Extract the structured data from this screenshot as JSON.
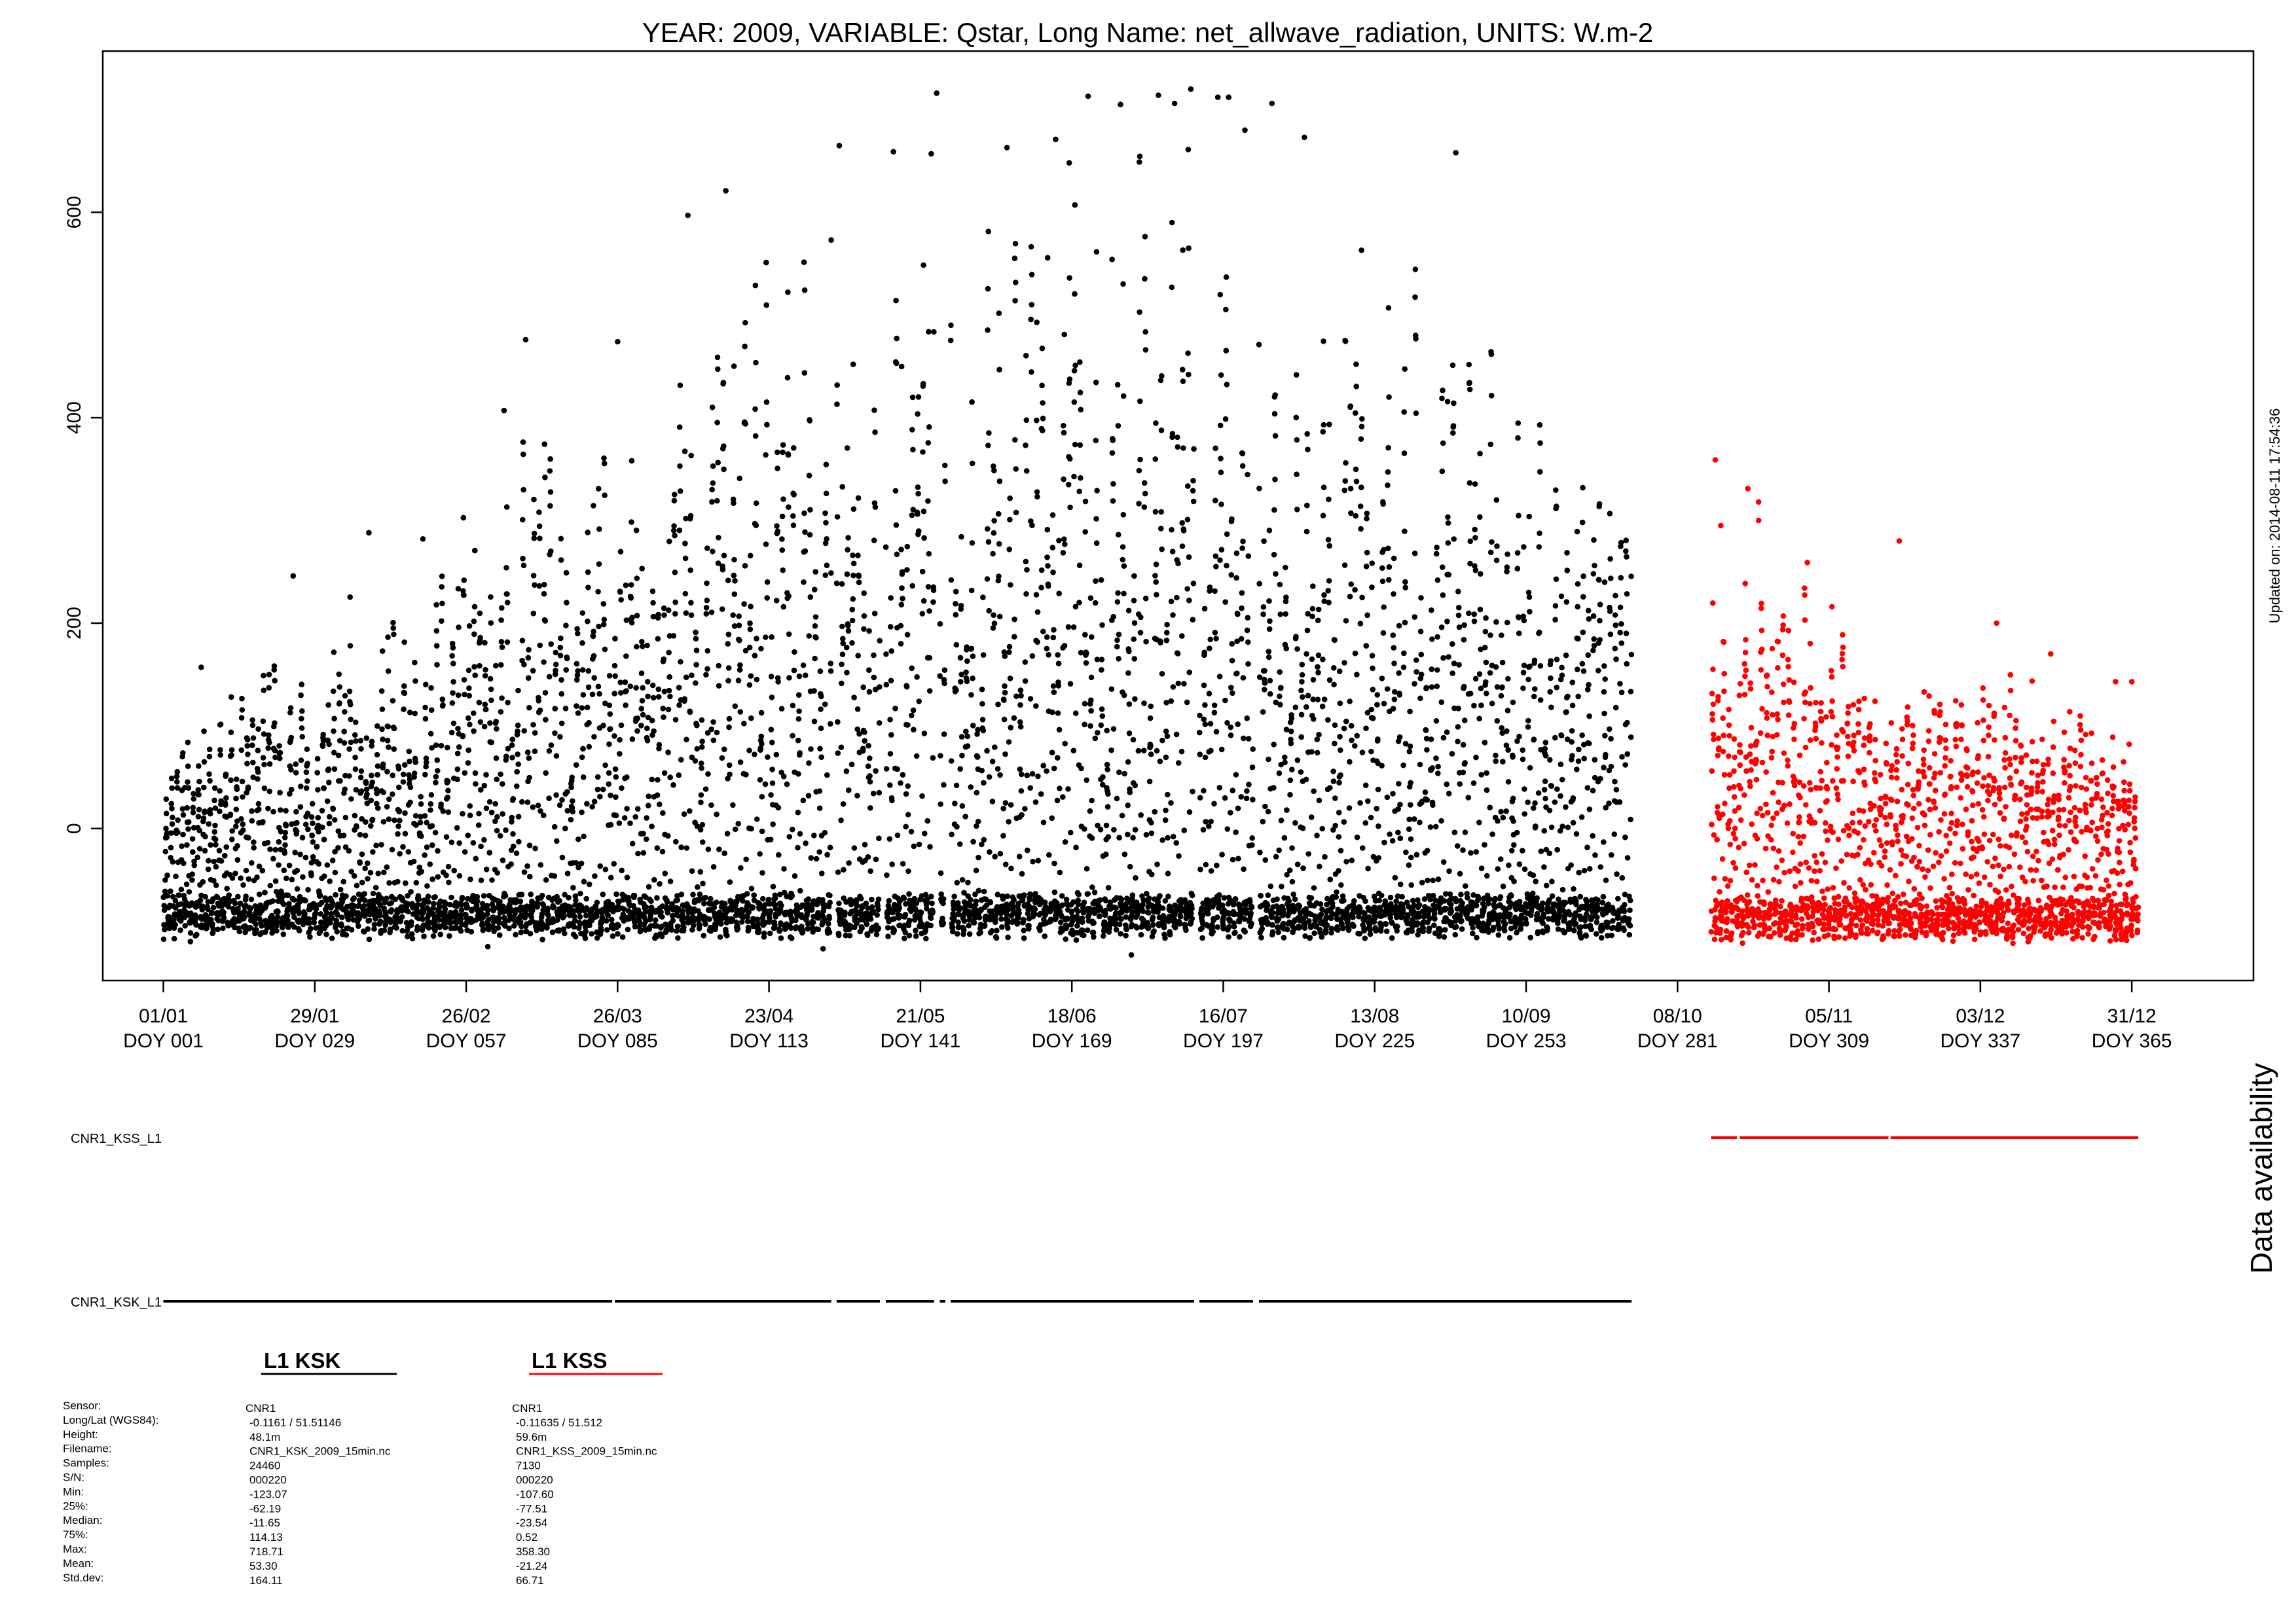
{
  "chart_data": {
    "type": "scatter",
    "title": "YEAR: 2009, VARIABLE: Qstar, Long Name: net_allwave_radiation, UNITS: W.m-2",
    "xlabel": "",
    "ylabel": "",
    "x_unit": "day of year",
    "xlim": [
      -10.2,
      387.5
    ],
    "ylim": [
      -148,
      757
    ],
    "yticks": [
      0,
      200,
      400,
      600
    ],
    "xticks": [
      {
        "doy": 1,
        "date": "01/01",
        "label": "DOY 001"
      },
      {
        "doy": 29,
        "date": "29/01",
        "label": "DOY 029"
      },
      {
        "doy": 57,
        "date": "26/02",
        "label": "DOY 057"
      },
      {
        "doy": 85,
        "date": "26/03",
        "label": "DOY 085"
      },
      {
        "doy": 113,
        "date": "23/04",
        "label": "DOY 113"
      },
      {
        "doy": 141,
        "date": "21/05",
        "label": "DOY 141"
      },
      {
        "doy": 169,
        "date": "18/06",
        "label": "DOY 169"
      },
      {
        "doy": 197,
        "date": "16/07",
        "label": "DOY 197"
      },
      {
        "doy": 225,
        "date": "13/08",
        "label": "DOY 225"
      },
      {
        "doy": 253,
        "date": "10/09",
        "label": "DOY 253"
      },
      {
        "doy": 281,
        "date": "08/10",
        "label": "DOY 281"
      },
      {
        "doy": 309,
        "date": "05/11",
        "label": "DOY 309"
      },
      {
        "doy": 337,
        "date": "03/12",
        "label": "DOY 337"
      },
      {
        "doy": 365,
        "date": "31/12",
        "label": "DOY 365"
      }
    ],
    "grid": false,
    "series": [
      {
        "id": "ksk",
        "color": "#000000",
        "doy_range": [
          1,
          272.5
        ],
        "gaps": [
          [
            124.5,
            125.5
          ],
          [
            133.5,
            134.6
          ],
          [
            143.5,
            144.6
          ],
          [
            145.6,
            146.6
          ],
          [
            191.6,
            192.6
          ],
          [
            202.5,
            203.6
          ]
        ],
        "daily_peak": [
          [
            1,
            70
          ],
          [
            15,
            125
          ],
          [
            30,
            215
          ],
          [
            45,
            255
          ],
          [
            57,
            300
          ],
          [
            70,
            400
          ],
          [
            85,
            420
          ],
          [
            98,
            520
          ],
          [
            113,
            580
          ],
          [
            127,
            630
          ],
          [
            141,
            650
          ],
          [
            155,
            660
          ],
          [
            169,
            670
          ],
          [
            183,
            680
          ],
          [
            197,
            660
          ],
          [
            211,
            620
          ],
          [
            225,
            570
          ],
          [
            239,
            530
          ],
          [
            253,
            480
          ],
          [
            265,
            440
          ],
          [
            272,
            400
          ]
        ],
        "night_base": -85,
        "points": [
          [
            124.5,
            573
          ],
          [
            126,
            665
          ],
          [
            136,
            659
          ],
          [
            143,
            657
          ],
          [
            144,
            716
          ],
          [
            157,
            663
          ],
          [
            166,
            671
          ],
          [
            172,
            713
          ],
          [
            178,
            705
          ],
          [
            185,
            714
          ],
          [
            188,
            706
          ],
          [
            191,
            720
          ],
          [
            196,
            712
          ],
          [
            198,
            712
          ],
          [
            201,
            680
          ],
          [
            206,
            706
          ],
          [
            212,
            673
          ],
          [
            240,
            658
          ],
          [
            98,
            597
          ],
          [
            105,
            621
          ],
          [
            85,
            474
          ],
          [
            64,
            407
          ],
          [
            68,
            476
          ],
          [
            49,
            282
          ],
          [
            39,
            288
          ],
          [
            25,
            246
          ],
          [
            8,
            157
          ],
          [
            5,
            40
          ],
          [
            180,
            -123
          ],
          [
            123,
            -117
          ],
          [
            61,
            -115
          ],
          [
            6,
            -110
          ]
        ],
        "stats": {
          "heading": "L1 KSK",
          "sensor": "CNR1",
          "longlat": "-0.1161 / 51.51146",
          "height": "48.1m",
          "filename": "CNR1_KSK_2009_15min.nc",
          "samples": "24460",
          "sn": "000220",
          "min": "-123.07",
          "p25": "-62.19",
          "median": "-11.65",
          "p75": "114.13",
          "max": "718.71",
          "mean": "53.30",
          "stddev": "164.11"
        }
      },
      {
        "id": "kss",
        "color": "#ff0000",
        "doy_range": [
          287.2,
          366.2
        ],
        "gaps": [],
        "daily_peak": [
          [
            287,
            230
          ],
          [
            295,
            280
          ],
          [
            300,
            260
          ],
          [
            310,
            220
          ],
          [
            320,
            180
          ],
          [
            330,
            150
          ],
          [
            340,
            150
          ],
          [
            350,
            140
          ],
          [
            360,
            120
          ],
          [
            366,
            110
          ]
        ],
        "night_base": -88,
        "points": [
          [
            288,
            359
          ],
          [
            289,
            295
          ],
          [
            294,
            331
          ],
          [
            296,
            318
          ],
          [
            305,
            259
          ],
          [
            322,
            280
          ],
          [
            296,
            300
          ],
          [
            340,
            200
          ],
          [
            350,
            170
          ],
          [
            365,
            143
          ],
          [
            362,
            143
          ],
          [
            290,
            -106
          ],
          [
            310,
            -107
          ],
          [
            330,
            -108
          ]
        ],
        "stats": {
          "heading": "L1 KSS",
          "sensor": "CNR1",
          "longlat": "-0.11635 / 51.512",
          "height": "59.6m",
          "filename": "CNR1_KSS_2009_15min.nc",
          "samples": "7130",
          "sn": "000220",
          "min": "-107.60",
          "p25": "-77.51",
          "median": "-23.54",
          "p75": "0.52",
          "max": "358.30",
          "mean": "-21.24",
          "stddev": "66.71"
        }
      }
    ],
    "availability": {
      "title": "Data availability",
      "rows": [
        {
          "label": "CNR1_KSS_L1",
          "color": "#ff0000",
          "segments": [
            [
              287.2,
              292
            ],
            [
              292.5,
              320
            ],
            [
              320.4,
              366.2
            ]
          ]
        },
        {
          "label": "CNR1_KSK_L1",
          "color": "#000000",
          "segments": [
            [
              1,
              84
            ],
            [
              84.5,
              124.5
            ],
            [
              125.5,
              133.5
            ],
            [
              134.6,
              143.5
            ],
            [
              144.6,
              145.6
            ],
            [
              146.6,
              191.6
            ],
            [
              192.6,
              202.5
            ],
            [
              203.6,
              272.5
            ]
          ]
        }
      ]
    },
    "stats_labels": {
      "sensor": "Sensor:",
      "longlat": "Long/Lat (WGS84):",
      "height": "Height:",
      "filename": "Filename:",
      "samples": "Samples:",
      "sn": "S/N:",
      "min": "Min:",
      "p25": "25%:",
      "median": "Median:",
      "p75": "75%:",
      "max": "Max:",
      "mean": "Mean:",
      "stddev": "Std.dev:"
    },
    "updated": "Updated on: 2014-08-11 17:54:36"
  }
}
